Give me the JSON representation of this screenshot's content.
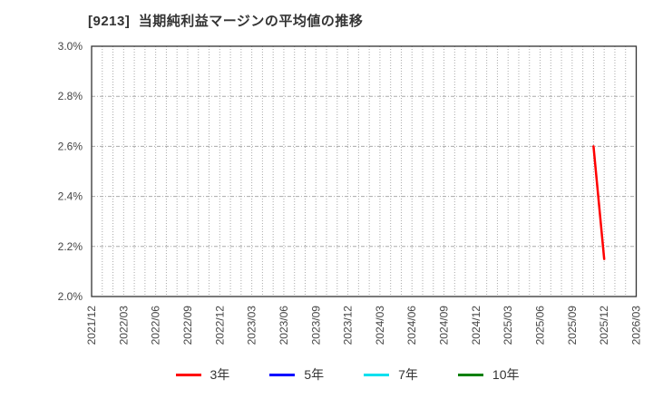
{
  "title": "[9213]  当期純利益マージンの平均値の推移",
  "chart_data": {
    "type": "line",
    "title": "[9213]  当期純利益マージンの平均値の推移",
    "xlabel": "",
    "ylabel": "",
    "ylim": [
      2.0,
      3.0
    ],
    "ytick_step": 0.2,
    "ytick_labels": [
      "2.0%",
      "2.2%",
      "2.4%",
      "2.6%",
      "2.8%",
      "3.0%"
    ],
    "x_start": "2021/12",
    "x_end": "2026/03",
    "xtick_labels": [
      "2021/12",
      "2022/03",
      "2022/06",
      "2022/09",
      "2022/12",
      "2023/03",
      "2023/06",
      "2023/09",
      "2023/12",
      "2024/03",
      "2024/06",
      "2024/09",
      "2024/12",
      "2025/03",
      "2025/06",
      "2025/09",
      "2025/12",
      "2026/03"
    ],
    "minor_vertical_grid": "monthly",
    "grid": true,
    "legend_position": "bottom",
    "series": [
      {
        "name": "3年",
        "color": "#ff0000",
        "points": [
          {
            "x": "2025/11",
            "y": 2.6
          },
          {
            "x": "2025/12",
            "y": 2.15
          }
        ]
      },
      {
        "name": "5年",
        "color": "#0000ff",
        "points": []
      },
      {
        "name": "7年",
        "color": "#00e0ee",
        "points": []
      },
      {
        "name": "10年",
        "color": "#008000",
        "points": []
      }
    ],
    "colors": {
      "spine": "#333333",
      "grid": "#aaaaaa",
      "tick_text": "#444444",
      "background": "#ffffff"
    }
  }
}
